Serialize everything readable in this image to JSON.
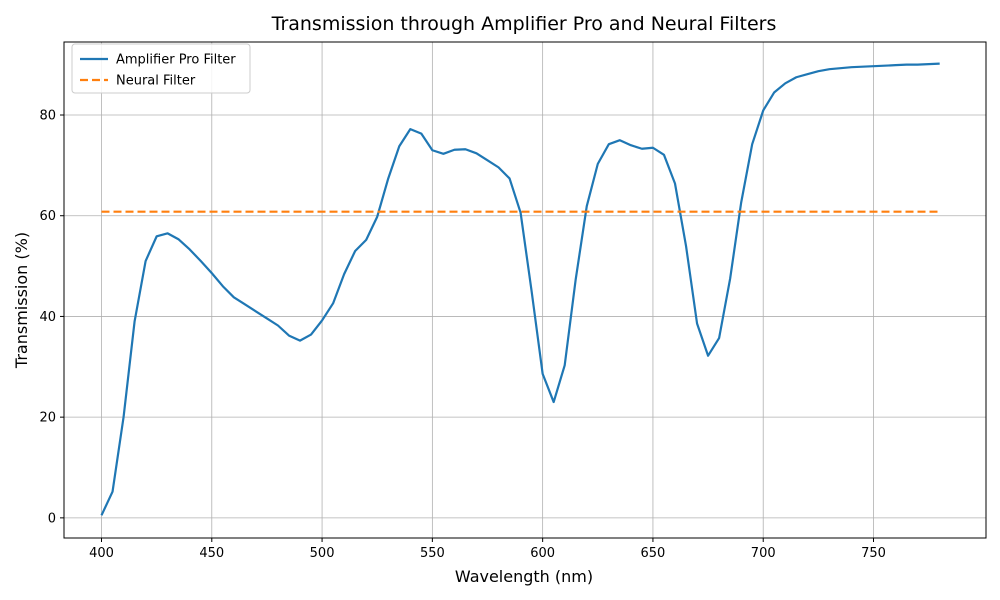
{
  "chart_data": {
    "type": "line",
    "title": "Transmission through Amplifier Pro and Neural Filters",
    "xlabel": "Wavelength (nm)",
    "ylabel": "Transmission (%)",
    "xlim": [
      383,
      801
    ],
    "ylim": [
      -4,
      94.5
    ],
    "xticks": [
      400,
      450,
      500,
      550,
      600,
      650,
      700,
      750
    ],
    "yticks": [
      0,
      20,
      40,
      60,
      80
    ],
    "grid": true,
    "legend_position": "upper-left",
    "series": [
      {
        "name": "Amplifier Pro Filter",
        "color": "#1f77b4",
        "style": "solid",
        "x": [
          400,
          405,
          410,
          415,
          420,
          425,
          430,
          435,
          440,
          445,
          450,
          455,
          460,
          465,
          470,
          475,
          480,
          485,
          490,
          495,
          500,
          505,
          510,
          515,
          520,
          525,
          530,
          535,
          540,
          545,
          550,
          555,
          560,
          565,
          570,
          575,
          580,
          585,
          590,
          595,
          600,
          605,
          610,
          615,
          620,
          625,
          630,
          635,
          640,
          645,
          650,
          655,
          660,
          665,
          670,
          675,
          680,
          685,
          690,
          695,
          700,
          705,
          710,
          715,
          720,
          725,
          730,
          735,
          740,
          745,
          750,
          755,
          760,
          765,
          770,
          775,
          780
        ],
        "y": [
          0.5,
          5.2,
          20.0,
          39.0,
          51.0,
          55.9,
          56.5,
          55.3,
          53.3,
          51.0,
          48.6,
          46.0,
          43.8,
          42.4,
          41.0,
          39.6,
          38.2,
          36.2,
          35.2,
          36.4,
          39.2,
          42.6,
          48.4,
          53.0,
          55.2,
          59.8,
          67.4,
          73.8,
          77.2,
          76.3,
          73.0,
          72.3,
          73.1,
          73.2,
          72.4,
          71.0,
          69.6,
          67.4,
          60.6,
          45.0,
          28.6,
          23.0,
          30.3,
          47.4,
          61.9,
          70.3,
          74.2,
          75.0,
          74.0,
          73.3,
          73.5,
          72.1,
          66.4,
          54.0,
          38.6,
          32.2,
          35.7,
          47.5,
          62.6,
          74.2,
          80.9,
          84.5,
          86.3,
          87.5,
          88.1,
          88.7,
          89.1,
          89.3,
          89.5,
          89.6,
          89.7,
          89.8,
          89.9,
          90.0,
          90.0,
          90.1,
          90.2
        ]
      },
      {
        "name": "Neural Filter",
        "color": "#ff7f0e",
        "style": "dashed",
        "x": [
          400,
          780
        ],
        "y": [
          60.8,
          60.8
        ]
      }
    ]
  }
}
